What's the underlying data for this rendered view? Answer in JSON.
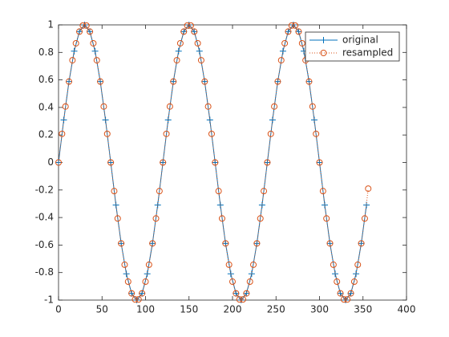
{
  "chart_data": {
    "type": "line",
    "xlim": [
      0,
      400
    ],
    "xticks": [
      0,
      50,
      100,
      150,
      200,
      250,
      300,
      350,
      400
    ],
    "ylim": [
      -1,
      1
    ],
    "yticks": [
      -1,
      -0.8,
      -0.6,
      -0.4,
      -0.2,
      0,
      0.2,
      0.4,
      0.6,
      0.8,
      1
    ],
    "legend": "upper right",
    "series": [
      {
        "name": "original",
        "color": "#0072bd",
        "marker": "+",
        "linestyle": "solid",
        "x": [
          0,
          6,
          12,
          18,
          24,
          30,
          36,
          42,
          48,
          54,
          60,
          66,
          72,
          78,
          84,
          90,
          96,
          102,
          108,
          114,
          120,
          126,
          132,
          138,
          144,
          150,
          156,
          162,
          168,
          174,
          180,
          186,
          192,
          198,
          204,
          210,
          216,
          222,
          228,
          234,
          240,
          246,
          252,
          258,
          264,
          270,
          276,
          282,
          288,
          294,
          300,
          306,
          312,
          318,
          324,
          330,
          336,
          342,
          348,
          354
        ],
        "values": [
          0,
          0.309,
          0.588,
          0.809,
          0.951,
          1,
          0.951,
          0.809,
          0.588,
          0.309,
          0,
          -0.309,
          -0.588,
          -0.809,
          -0.951,
          -1,
          -0.951,
          -0.809,
          -0.588,
          -0.309,
          0,
          0.309,
          0.588,
          0.809,
          0.951,
          1,
          0.951,
          0.809,
          0.588,
          0.309,
          0,
          -0.309,
          -0.588,
          -0.809,
          -0.951,
          -1,
          -0.951,
          -0.809,
          -0.588,
          -0.309,
          0,
          0.309,
          0.588,
          0.809,
          0.951,
          1,
          0.951,
          0.809,
          0.588,
          0.309,
          0,
          -0.309,
          -0.588,
          -0.809,
          -0.951,
          -1,
          -0.951,
          -0.809,
          -0.588,
          -0.309
        ]
      },
      {
        "name": "resampled",
        "color": "#d95319",
        "marker": "o",
        "linestyle": "dotted",
        "x": [
          0,
          4,
          8,
          12,
          16,
          20,
          24,
          28,
          32,
          36,
          40,
          44,
          48,
          52,
          56,
          60,
          64,
          68,
          72,
          76,
          80,
          84,
          88,
          92,
          96,
          100,
          104,
          108,
          112,
          116,
          120,
          124,
          128,
          132,
          136,
          140,
          144,
          148,
          152,
          156,
          160,
          164,
          168,
          172,
          176,
          180,
          184,
          188,
          192,
          196,
          200,
          204,
          208,
          212,
          216,
          220,
          224,
          228,
          232,
          236,
          240,
          244,
          248,
          252,
          256,
          260,
          264,
          268,
          272,
          276,
          280,
          284,
          288,
          292,
          296,
          300,
          304,
          308,
          312,
          316,
          320,
          324,
          328,
          332,
          336,
          340,
          344,
          348,
          352,
          356
        ],
        "values": [
          0,
          0.208,
          0.407,
          0.588,
          0.743,
          0.866,
          0.951,
          0.995,
          0.995,
          0.951,
          0.866,
          0.743,
          0.588,
          0.407,
          0.208,
          0,
          -0.208,
          -0.407,
          -0.588,
          -0.743,
          -0.866,
          -0.951,
          -0.995,
          -0.995,
          -0.951,
          -0.866,
          -0.743,
          -0.588,
          -0.407,
          -0.208,
          0,
          0.208,
          0.407,
          0.588,
          0.743,
          0.866,
          0.951,
          0.995,
          0.995,
          0.951,
          0.866,
          0.743,
          0.588,
          0.407,
          0.208,
          0,
          -0.208,
          -0.407,
          -0.588,
          -0.743,
          -0.866,
          -0.951,
          -0.995,
          -0.995,
          -0.951,
          -0.866,
          -0.743,
          -0.588,
          -0.407,
          -0.208,
          0,
          0.208,
          0.407,
          0.588,
          0.743,
          0.866,
          0.951,
          0.995,
          0.995,
          0.951,
          0.866,
          0.743,
          0.588,
          0.407,
          0.208,
          0,
          -0.208,
          -0.407,
          -0.588,
          -0.743,
          -0.866,
          -0.951,
          -0.995,
          -0.995,
          -0.951,
          -0.866,
          -0.743,
          -0.588,
          -0.407,
          -0.19
        ]
      }
    ]
  }
}
